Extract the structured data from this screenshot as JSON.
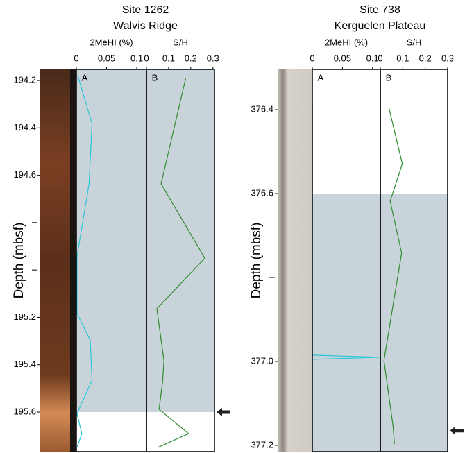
{
  "panels": [
    {
      "type": "line",
      "title": "Site 1262",
      "subtitle": "Walvis Ridge",
      "ylabel": "Depth (mbsf)",
      "ylim": [
        194.153,
        195.767
      ],
      "yticks": [
        194.2,
        194.4,
        194.6,
        195.2,
        195.4,
        195.6
      ],
      "minor_yticks": [
        194.8,
        195.0
      ],
      "shade": [
        194.153,
        195.6
      ],
      "shade_color": "#c9d4da",
      "arrow_depth": 195.6,
      "subplots": [
        {
          "label": "A",
          "xlabel": "2MeHI (%)",
          "xlim": [
            0,
            0.116
          ],
          "xticks": [
            0,
            0.05,
            0.1
          ],
          "color": "#27c6d8",
          "depth": [
            194.177,
            194.382,
            194.636,
            194.944,
            195.184,
            195.296,
            195.465,
            195.606,
            195.691,
            195.749
          ],
          "values": [
            0.002,
            0.026,
            0.021,
            0.001,
            0.001,
            0.023,
            0.026,
            0.001,
            0.009,
            0.001
          ]
        },
        {
          "label": "B",
          "xlabel": "S/H",
          "xlim": [
            0,
            0.307
          ],
          "xticks": [
            0,
            0.1,
            0.2,
            0.3
          ],
          "color": "#2e8b2e",
          "depth": [
            194.191,
            194.636,
            194.95,
            195.164,
            195.383,
            195.471,
            195.588,
            195.691,
            195.749
          ],
          "values": [
            0.177,
            0.066,
            0.263,
            0.047,
            0.079,
            0.073,
            0.057,
            0.19,
            0.051
          ]
        }
      ]
    },
    {
      "type": "line",
      "title": "Site 738",
      "subtitle": "Kerguelen Plateau",
      "ylabel": "Depth (mbsf)",
      "ylim": [
        376.304,
        377.215
      ],
      "yticks": [
        376.4,
        376.6,
        {
          "value": 377,
          "label": "377.0"
        },
        377.2
      ],
      "minor_yticks": [
        376.8
      ],
      "shade": [
        376.6,
        377.215
      ],
      "shade_color": "#c9d4da",
      "arrow_depth": 377.165,
      "subplots": [
        {
          "label": "A",
          "xlabel": "2MeHI (%)",
          "xlim": [
            0,
            0.113
          ],
          "xticks": [
            0,
            0.05,
            0.1
          ],
          "color": "#27c6d8",
          "depth": [
            376.39,
            376.985,
            376.99,
            376.995,
            377.19
          ],
          "values": [
            0,
            0,
            0.113,
            0,
            0
          ]
        },
        {
          "label": "B",
          "xlabel": "S/H",
          "xlim": [
            0,
            0.3
          ],
          "xticks": [
            0,
            0.1,
            0.2,
            0.3
          ],
          "color": "#2e8b2e",
          "depth": [
            376.395,
            376.529,
            376.618,
            376.742,
            376.998,
            377.155,
            377.197
          ],
          "values": [
            0.038,
            0.098,
            0.044,
            0.095,
            0.016,
            0.057,
            0.063
          ]
        }
      ]
    }
  ]
}
